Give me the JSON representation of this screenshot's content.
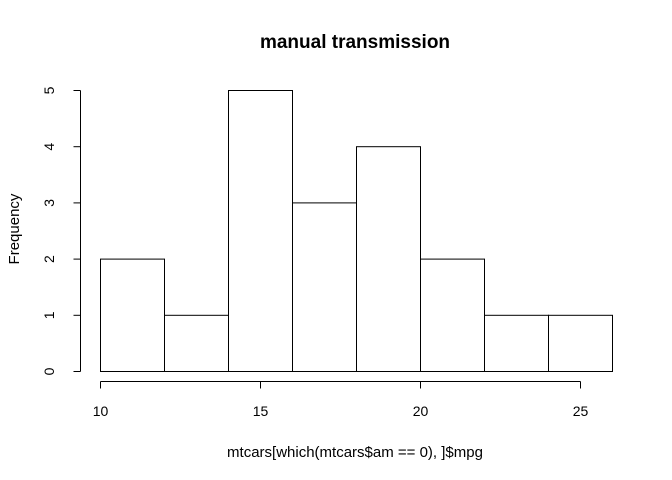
{
  "chart_data": {
    "type": "bar",
    "title": "manual transmission",
    "xlabel": "mtcars[which(mtcars$am == 0), ]$mpg",
    "ylabel": "Frequency",
    "bins": [
      {
        "from": 10,
        "to": 12,
        "count": 2
      },
      {
        "from": 12,
        "to": 14,
        "count": 1
      },
      {
        "from": 14,
        "to": 16,
        "count": 5
      },
      {
        "from": 16,
        "to": 18,
        "count": 3
      },
      {
        "from": 18,
        "to": 20,
        "count": 4
      },
      {
        "from": 20,
        "to": 22,
        "count": 2
      },
      {
        "from": 22,
        "to": 24,
        "count": 1
      },
      {
        "from": 24,
        "to": 26,
        "count": 1
      }
    ],
    "xlim": [
      10,
      26
    ],
    "ylim": [
      0,
      5
    ],
    "x_ticks": [
      10,
      15,
      20,
      25
    ],
    "y_ticks": [
      0,
      1,
      2,
      3,
      4,
      5
    ],
    "grid": false,
    "legend": "none"
  }
}
